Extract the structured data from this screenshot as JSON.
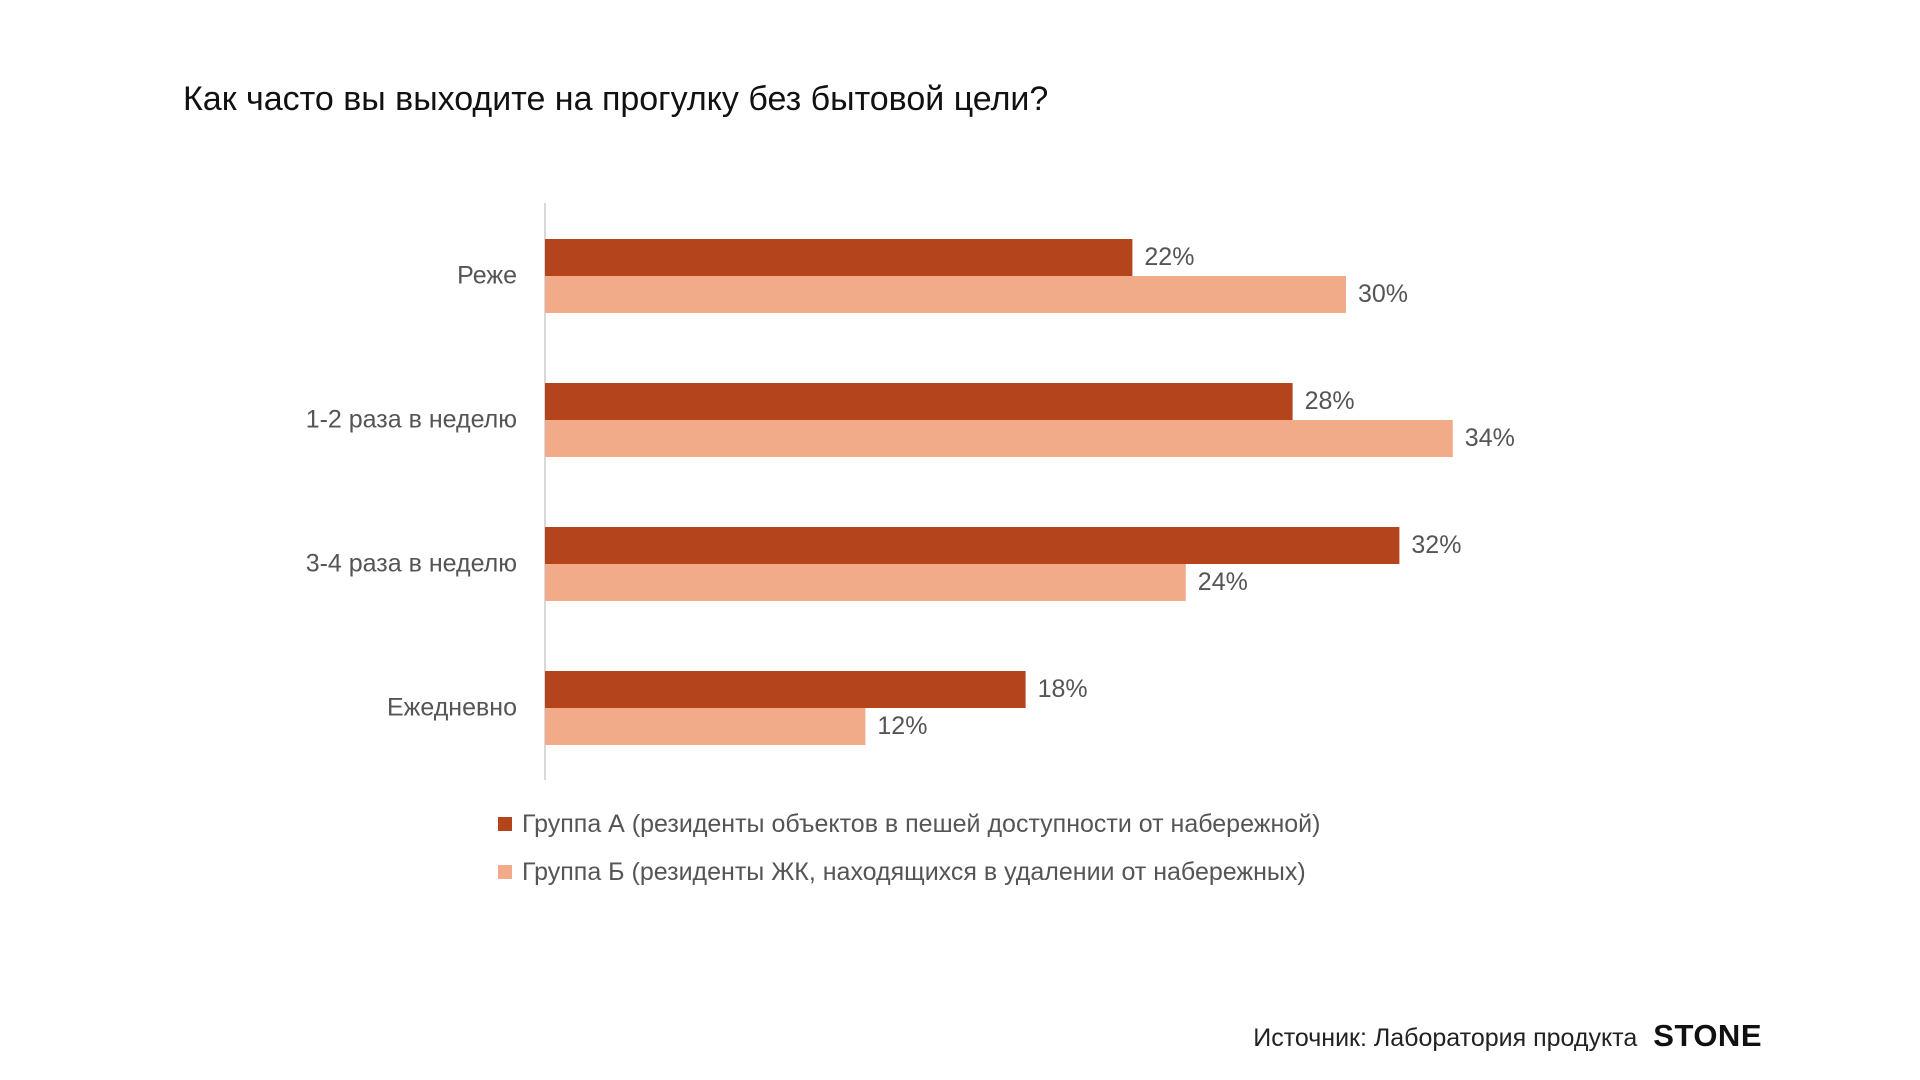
{
  "title": "Как часто вы выходите на прогулку без бытовой цели?",
  "colors": {
    "series_a": "#b3441b",
    "series_b": "#f2ab89",
    "axis": "#d9d9d9",
    "category_label": "#555555",
    "value_label": "#555555"
  },
  "chart_data": {
    "type": "bar",
    "orientation": "horizontal",
    "title": "Как часто вы выходите на прогулку без бытовой цели?",
    "categories": [
      "Реже",
      "1-2 раза в неделю",
      "3-4 раза в неделю",
      "Ежедневно"
    ],
    "series": [
      {
        "name": "Группа А (резиденты объектов в пешей доступности от набережной)",
        "values": [
          22,
          28,
          32,
          18
        ],
        "labels": [
          "22%",
          "28%",
          "32%",
          "18%"
        ]
      },
      {
        "name": "Группа Б (резиденты ЖК, находящихся в удалении от набережных)",
        "values": [
          30,
          34,
          24,
          12
        ],
        "labels": [
          "30%",
          "34%",
          "24%",
          "12%"
        ]
      }
    ],
    "value_unit": "%",
    "xlim": [
      0,
      40
    ],
    "grid": false,
    "legend_position": "bottom"
  },
  "source": {
    "text": "Источник: Лаборатория продукта",
    "logo": "STONE"
  }
}
